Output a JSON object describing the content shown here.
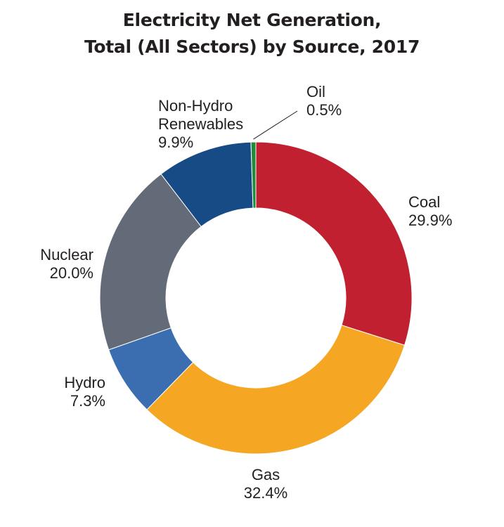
{
  "chart_data": {
    "type": "pie",
    "style": "donut",
    "title": "Electricity Net Generation,",
    "subtitle": "Total (All Sectors) by Source, 2017",
    "slices": [
      {
        "name": "Coal",
        "value_label": "29.9%",
        "value": 29.9,
        "color": "#c0202f"
      },
      {
        "name": "Gas",
        "value_label": "32.4%",
        "value": 32.4,
        "color": "#f5a623"
      },
      {
        "name": "Hydro",
        "value_label": "7.3%",
        "value": 7.3,
        "color": "#3b6eb0"
      },
      {
        "name": "Nuclear",
        "value_label": "20.0%",
        "value": 20.0,
        "color": "#646b78"
      },
      {
        "name": "Non-Hydro\nRenewables",
        "value_label": "9.9%",
        "value": 9.9,
        "color": "#164b85"
      },
      {
        "name": "Oil",
        "value_label": "0.5%",
        "value": 0.5,
        "color": "#1f8a3a"
      }
    ]
  }
}
